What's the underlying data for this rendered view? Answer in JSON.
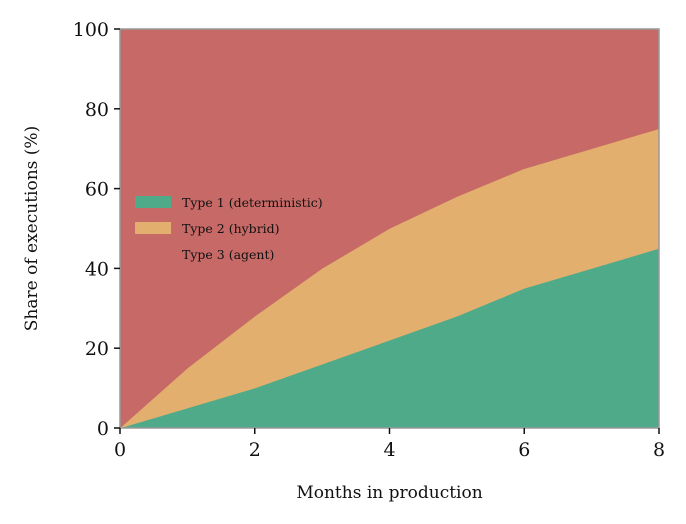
{
  "chart_data": {
    "type": "area",
    "stacked": true,
    "title": "",
    "xlabel": "Months in production",
    "ylabel": "Share of executions (%)",
    "x": [
      0,
      1,
      2,
      3,
      4,
      5,
      6,
      7,
      8
    ],
    "xlim": [
      0,
      8
    ],
    "ylim": [
      0,
      100
    ],
    "xticks": [
      "0",
      "2",
      "4",
      "6",
      "8"
    ],
    "yticks": [
      "0",
      "20",
      "40",
      "60",
      "80",
      "100"
    ],
    "grid": false,
    "legend_position": "center-left",
    "series": [
      {
        "name": "Type 1 (deterministic)",
        "color": "#4FAA8A",
        "values": [
          0,
          5,
          10,
          16,
          22,
          28,
          35,
          40,
          45
        ]
      },
      {
        "name": "Type 2 (hybrid)",
        "color": "#E3AF6E",
        "values": [
          0,
          10,
          18,
          24,
          28,
          30,
          30,
          30,
          30
        ]
      },
      {
        "name": "Type 3 (agent)",
        "color": "#C76A67",
        "values": [
          100,
          85,
          72,
          60,
          50,
          42,
          35,
          30,
          25
        ]
      }
    ]
  }
}
